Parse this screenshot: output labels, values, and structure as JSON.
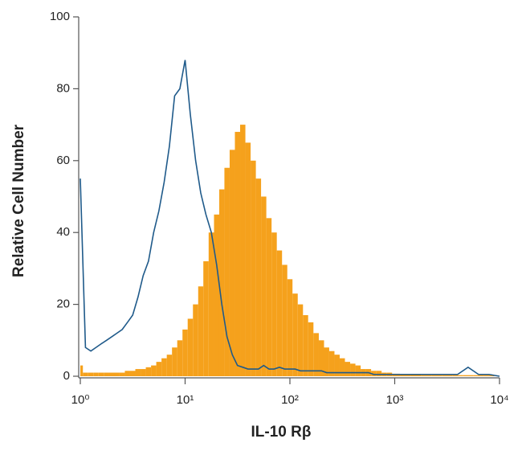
{
  "chart_data": {
    "type": "histogram",
    "xlabel": "IL-10 Rβ",
    "ylabel": "Relative Cell Number",
    "xscale": "log",
    "xlim": [
      1,
      10000
    ],
    "ylim": [
      0,
      100
    ],
    "xticks": [
      {
        "value": 1,
        "label": "10⁰"
      },
      {
        "value": 10,
        "label": "10¹"
      },
      {
        "value": 100,
        "label": "10²"
      },
      {
        "value": 1000,
        "label": "10³"
      },
      {
        "value": 10000,
        "label": "10⁴"
      }
    ],
    "yticks": [
      0,
      20,
      40,
      60,
      80,
      100
    ],
    "grid": false,
    "x": [
      1,
      1.12,
      1.26,
      1.41,
      1.58,
      1.78,
      2.0,
      2.24,
      2.51,
      2.82,
      3.16,
      3.55,
      3.98,
      4.47,
      5.01,
      5.62,
      6.31,
      7.08,
      7.94,
      8.91,
      10,
      11.2,
      12.6,
      14.1,
      15.8,
      17.8,
      20,
      22.4,
      25.1,
      28.2,
      31.6,
      35.5,
      39.8,
      44.7,
      50.1,
      56.2,
      63.1,
      70.8,
      79.4,
      89.1,
      100,
      112,
      126,
      141,
      158,
      178,
      200,
      224,
      251,
      282,
      316,
      355,
      398,
      447,
      501,
      562,
      631,
      708,
      794,
      891,
      1000,
      1259,
      1585,
      1995,
      2512,
      3162,
      3981,
      5012,
      6310,
      7943,
      10000
    ],
    "series": [
      {
        "color": "#f5a11c",
        "fill": true,
        "values": [
          3,
          1,
          1,
          1,
          1,
          1,
          1,
          1,
          1,
          1.5,
          1.5,
          2,
          2,
          2.5,
          3,
          4,
          5,
          6,
          8,
          10,
          13,
          16,
          20,
          25,
          32,
          40,
          45,
          52,
          58,
          63,
          68,
          70,
          65,
          60,
          55,
          50,
          44,
          40,
          35,
          31,
          27,
          23,
          20,
          17,
          15,
          12,
          10,
          8,
          7,
          6,
          5,
          4,
          3.5,
          3,
          2,
          2,
          1.5,
          1.5,
          1,
          1,
          0.7,
          0.5,
          0.5,
          0.3,
          0.3,
          0.3,
          0.3,
          0.3,
          0.3,
          0.3,
          0
        ]
      },
      {
        "color": "#1f5a8a",
        "fill": false,
        "values": [
          55,
          8,
          7,
          8,
          9,
          10,
          11,
          12,
          13,
          15,
          17,
          22,
          28,
          32,
          40,
          46,
          54,
          64,
          78,
          80,
          88,
          73,
          60,
          51,
          45,
          40,
          31,
          20,
          11,
          6,
          3,
          2.5,
          2,
          2,
          2,
          3,
          2,
          2,
          2.5,
          2,
          2,
          2,
          1.5,
          1.5,
          1.5,
          1.5,
          1.5,
          1,
          1,
          1,
          1,
          1,
          1,
          1,
          1,
          1,
          0.5,
          0.5,
          0.5,
          0.5,
          0.5,
          0.5,
          0.5,
          0.5,
          0.5,
          0.5,
          0.5,
          2.5,
          0.5,
          0.5,
          0
        ]
      }
    ]
  }
}
